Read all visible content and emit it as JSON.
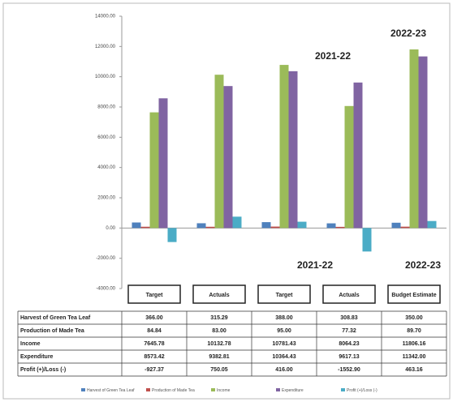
{
  "chart_data": {
    "type": "bar",
    "categories": [
      "Target",
      "Actuals",
      "Target",
      "Actuals",
      "Budget Estimate"
    ],
    "series": [
      {
        "name": "Harvest of Green Tea Leaf",
        "color": "#4f81bd",
        "values": [
          366,
          315.29,
          388,
          308.83,
          350
        ],
        "value_labels": [
          "366.00",
          "315.29",
          "388.00",
          "308.83",
          "350.00"
        ]
      },
      {
        "name": "Production of Made Tea",
        "color": "#c0504d",
        "values": [
          84.84,
          83,
          95,
          77.32,
          89.7
        ],
        "value_labels": [
          "84.84",
          "83.00",
          "95.00",
          "77.32",
          "89.70"
        ]
      },
      {
        "name": "Income",
        "color": "#9bbb59",
        "values": [
          7645.78,
          10132.78,
          10781.43,
          8064.23,
          11806.16
        ],
        "value_labels": [
          "7645.78",
          "10132.78",
          "10781.43",
          "8064.23",
          "11806.16"
        ]
      },
      {
        "name": "Expenditure",
        "color": "#8064a2",
        "values": [
          8573.42,
          9382.81,
          10364.43,
          9617.13,
          11342
        ],
        "value_labels": [
          "8573.42",
          "9382.81",
          "10364.43",
          "9617.13",
          "11342.00"
        ]
      },
      {
        "name": "Profit (+)/Loss (-)",
        "color": "#4bacc6",
        "values": [
          -927.37,
          750.05,
          416,
          -1552.9,
          463.16
        ],
        "value_labels": [
          "-927.37",
          "750.05",
          "416.00",
          "-1552.90",
          "463.16"
        ]
      }
    ],
    "ylim": [
      -4000,
      14000
    ],
    "yticks": [
      {
        "value": -4000,
        "label": "-4000.00"
      },
      {
        "value": -2000,
        "label": "-2000.00"
      },
      {
        "value": 0,
        "label": "0.00"
      },
      {
        "value": 2000,
        "label": "2000.00"
      },
      {
        "value": 4000,
        "label": "4000.00"
      },
      {
        "value": 6000,
        "label": "6000.00"
      },
      {
        "value": 8000,
        "label": "8000.00"
      },
      {
        "value": 10000,
        "label": "10000.00"
      },
      {
        "value": 12000,
        "label": "12000.00"
      },
      {
        "value": 14000,
        "label": "14000.00"
      }
    ],
    "annotations": [
      "2021-22",
      "2022-23",
      "2021-22",
      "2022-23"
    ]
  }
}
